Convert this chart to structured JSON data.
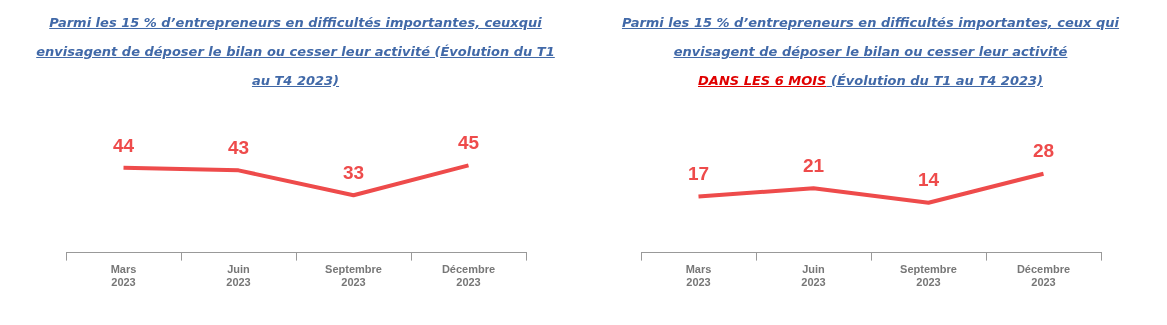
{
  "chart_data": [
    {
      "type": "line",
      "title": "Parmi les 15 % d’entrepreneurs en difficultés importantes, ceuxqui envisagent de déposer le bilan ou cesser leur activité (Évolution du T1 au T4 2023)",
      "categories": [
        "Mars\n2023",
        "Juin\n2023",
        "Septembre\n2023",
        "Décembre\n2023"
      ],
      "series": [
        {
          "color": "#ee4b4b",
          "values": [
            44,
            43,
            33,
            45
          ]
        }
      ],
      "data_labels": true,
      "grid": false,
      "legend": false,
      "marker": "none"
    },
    {
      "type": "line",
      "title": "Parmi les 15 % d’entrepreneurs en difficultés importantes, ceux qui envisagent de déposer le bilan ou cesser leur activité",
      "subtitle": "DANS LES 6 MOIS",
      "annotations": [
        "(Évolution du T1 au T4 2023)"
      ],
      "categories": [
        "Mars\n2023",
        "Juin\n2023",
        "Septembre\n2023",
        "Décembre\n2023"
      ],
      "series": [
        {
          "color": "#ee4b4b",
          "values": [
            17,
            21,
            14,
            28
          ]
        }
      ],
      "data_labels": true,
      "grid": false,
      "legend": false,
      "marker": "none"
    }
  ]
}
